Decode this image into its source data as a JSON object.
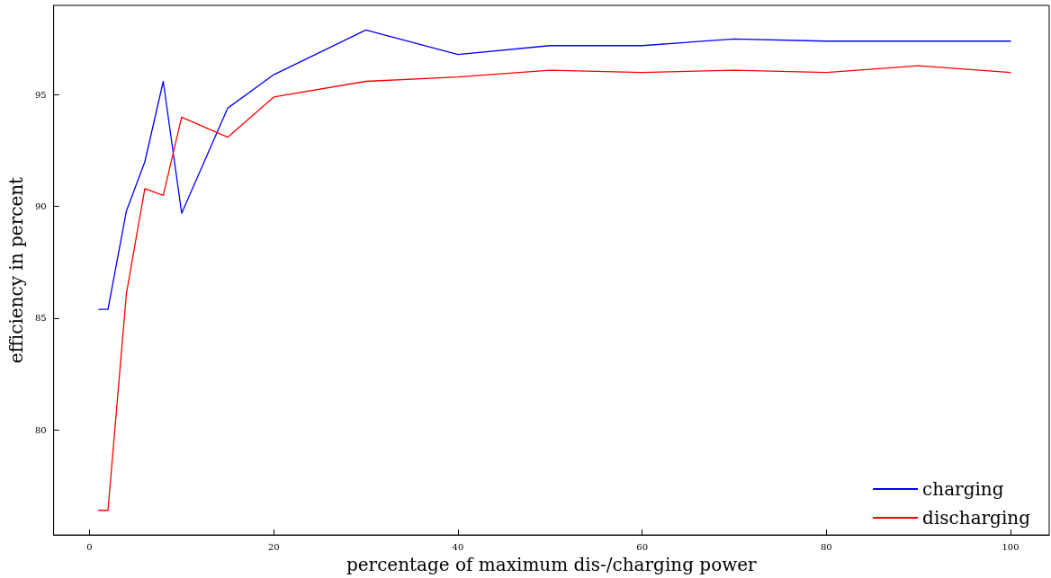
{
  "chart_data": {
    "type": "line",
    "xlabel": "percentage of maximum dis-/charging power",
    "ylabel": "efficiency in percent",
    "x": [
      1,
      2,
      4,
      6,
      8,
      10,
      15,
      20,
      30,
      40,
      50,
      60,
      70,
      80,
      90,
      100
    ],
    "series": [
      {
        "name": "charging",
        "color": "#0000ff",
        "values": [
          85.4,
          85.4,
          89.8,
          92.0,
          95.6,
          89.7,
          94.4,
          95.9,
          97.9,
          96.8,
          97.2,
          97.2,
          97.5,
          97.4,
          97.4,
          97.4
        ]
      },
      {
        "name": "discharging",
        "color": "#ff0000",
        "values": [
          76.4,
          76.4,
          86.1,
          90.8,
          90.5,
          94.0,
          93.1,
          94.9,
          95.6,
          95.8,
          96.1,
          96.0,
          96.1,
          96.0,
          96.3,
          96.0
        ]
      }
    ],
    "xlim": [
      -3.9,
      104.2
    ],
    "ylim": [
      75.3,
      99.0
    ],
    "xticks": [
      0,
      20,
      40,
      60,
      80,
      100
    ],
    "yticks": [
      80,
      85,
      90,
      95
    ],
    "grid": false,
    "legend": "bottom right",
    "marker": "none",
    "line_style": "solid"
  }
}
